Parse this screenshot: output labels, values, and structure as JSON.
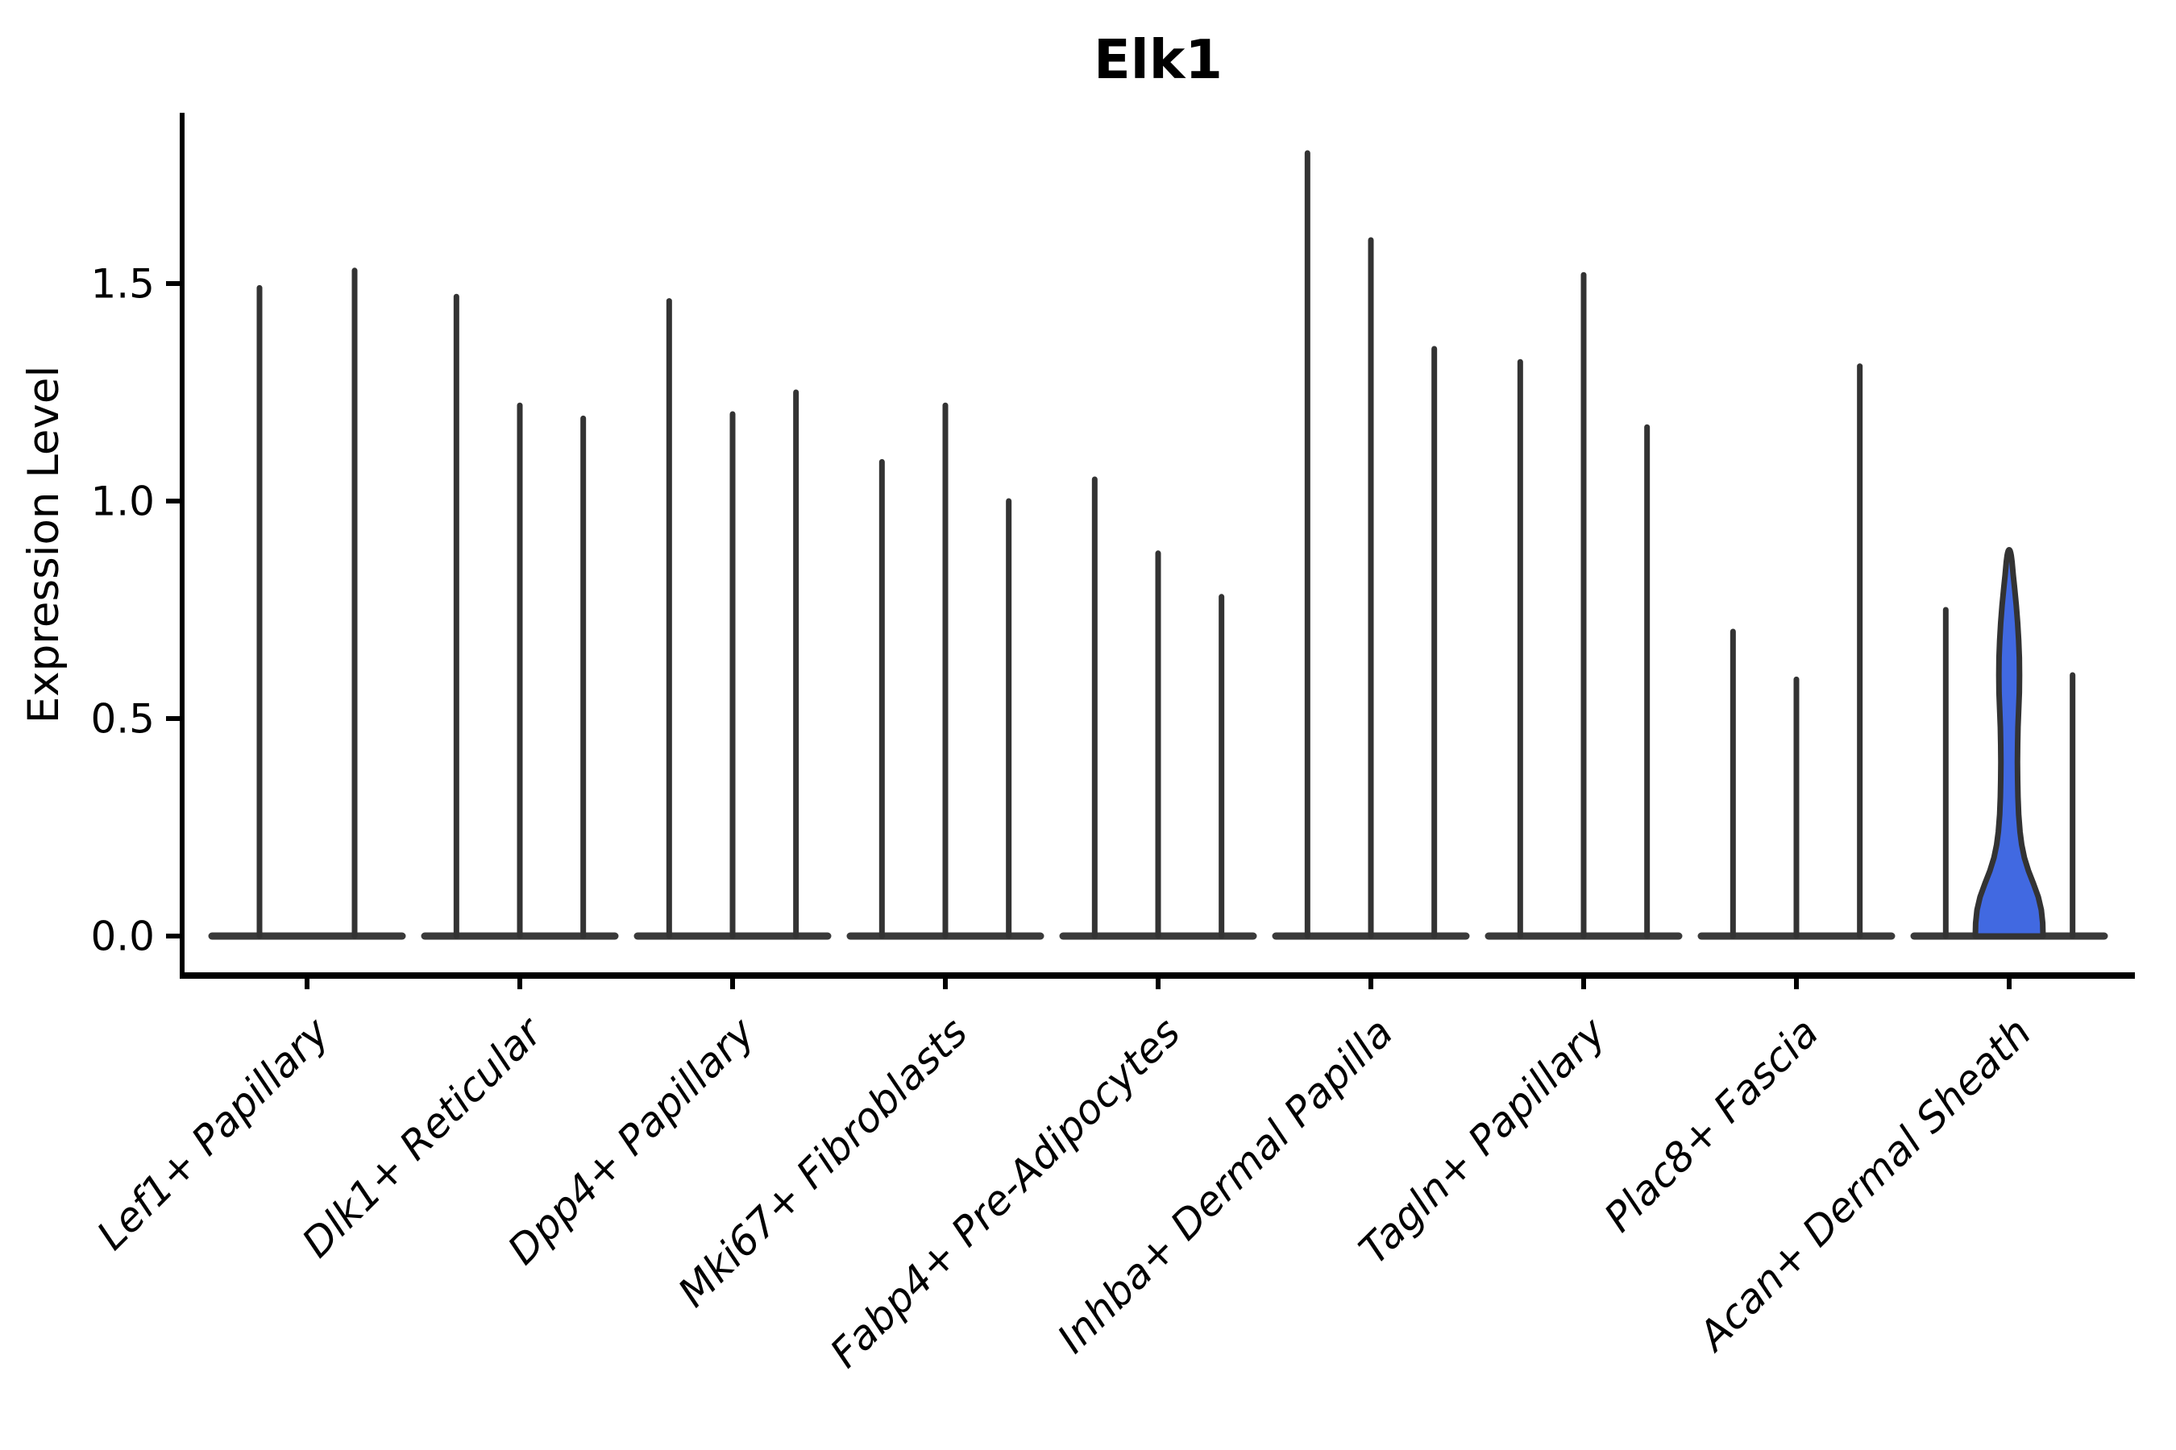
{
  "page": {
    "background": "#ffffff"
  },
  "chart_data": {
    "type": "violin",
    "title": "Elk1",
    "ylabel": "Expression Level",
    "xlabel": "",
    "ylim": [
      0,
      1.88
    ],
    "y_ticks": [
      0.0,
      0.5,
      1.0,
      1.5
    ],
    "y_tick_labels": [
      "0.0",
      "0.5",
      "1.0",
      "1.5"
    ],
    "grid": false,
    "legend": "none",
    "categories": [
      "Lef1+ Papillary",
      "Dlk1+ Reticular",
      "Dpp4+ Papillary",
      "Mki67+ Fibroblasts",
      "Fabp4+ Pre-Adipocytes",
      "Inhba+ Dermal Papilla",
      "Tagln+ Papillary",
      "Plac8+ Fascia",
      "Acan+ Dermal Sheath"
    ],
    "groups": [
      {
        "category": "Lef1+ Papillary",
        "violins": [
          {
            "max": 1.49
          },
          {
            "max": 1.53
          }
        ]
      },
      {
        "category": "Dlk1+ Reticular",
        "violins": [
          {
            "max": 1.47
          },
          {
            "max": 1.22
          },
          {
            "max": 1.19
          }
        ]
      },
      {
        "category": "Dpp4+ Papillary",
        "violins": [
          {
            "max": 1.46
          },
          {
            "max": 1.2
          },
          {
            "max": 1.25
          }
        ]
      },
      {
        "category": "Mki67+ Fibroblasts",
        "violins": [
          {
            "max": 1.09
          },
          {
            "max": 1.22
          },
          {
            "max": 1.0
          }
        ]
      },
      {
        "category": "Fabp4+ Pre-Adipocytes",
        "violins": [
          {
            "max": 1.05
          },
          {
            "max": 0.88
          },
          {
            "max": 0.78
          }
        ]
      },
      {
        "category": "Inhba+ Dermal Papilla",
        "violins": [
          {
            "max": 1.8
          },
          {
            "max": 1.6
          },
          {
            "max": 1.35
          }
        ]
      },
      {
        "category": "Tagln+ Papillary",
        "violins": [
          {
            "max": 1.32
          },
          {
            "max": 1.52
          },
          {
            "max": 1.17
          }
        ]
      },
      {
        "category": "Plac8+ Fascia",
        "violins": [
          {
            "max": 0.7
          },
          {
            "max": 0.59
          },
          {
            "max": 1.31
          }
        ]
      },
      {
        "category": "Acan+ Dermal Sheath",
        "violins": [
          {
            "max": 0.75
          },
          {
            "max": 0.89,
            "filled": true
          },
          {
            "max": 0.6
          }
        ]
      }
    ],
    "highlight": {
      "category": "Acan+ Dermal Sheath",
      "violin_index": 1,
      "max": 0.89,
      "fill": "#4169e1"
    },
    "highlight_profile": [
      [
        0.0,
        1.0
      ],
      [
        0.03,
        0.99
      ],
      [
        0.06,
        0.95
      ],
      [
        0.09,
        0.86
      ],
      [
        0.12,
        0.72
      ],
      [
        0.15,
        0.57
      ],
      [
        0.18,
        0.45
      ],
      [
        0.21,
        0.37
      ],
      [
        0.24,
        0.32
      ],
      [
        0.28,
        0.28
      ],
      [
        0.32,
        0.26
      ],
      [
        0.36,
        0.25
      ],
      [
        0.4,
        0.245
      ],
      [
        0.44,
        0.25
      ],
      [
        0.48,
        0.26
      ],
      [
        0.52,
        0.28
      ],
      [
        0.56,
        0.3
      ],
      [
        0.6,
        0.305
      ],
      [
        0.64,
        0.3
      ],
      [
        0.68,
        0.28
      ],
      [
        0.72,
        0.25
      ],
      [
        0.76,
        0.21
      ],
      [
        0.8,
        0.16
      ],
      [
        0.83,
        0.12
      ],
      [
        0.86,
        0.085
      ],
      [
        0.875,
        0.06
      ]
    ],
    "colors": {
      "outline": "#333333",
      "baseline": "#3a3a3a",
      "highlight_fill": "#4169e1",
      "axis": "#000000",
      "text": "#000000"
    }
  }
}
